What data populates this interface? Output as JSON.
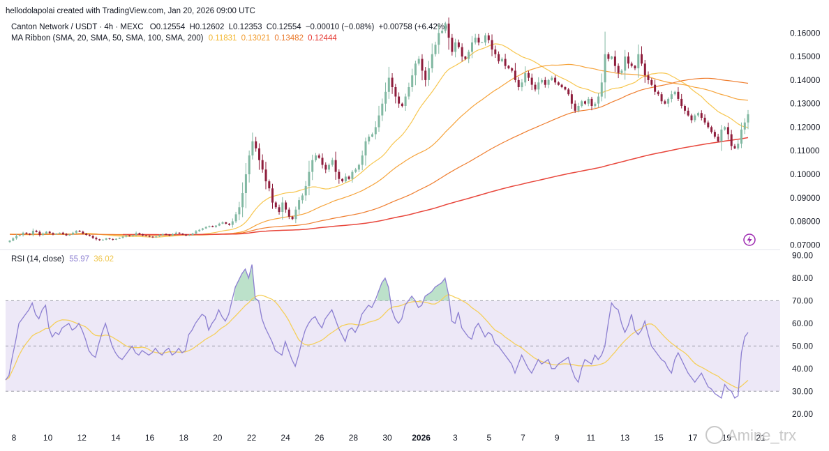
{
  "header": {
    "credit": "hellodolapolai created with TradingView.com, Jan 20, 2026 09:00 UTC",
    "symbol": "Canton Network / USDT · 4h · MEXC",
    "ohlc": {
      "o": "O0.12554",
      "h": "H0.12602",
      "l": "L0.12353",
      "c": "C0.12554",
      "change": "−0.00010 (−0.08%)",
      "change2": "+0.00758 (+6.42%)"
    },
    "ma_label": "MA Ribbon (SMA, 20, SMA, 50, SMA, 100, SMA, 200)",
    "ma_values": [
      "0.11831",
      "0.13021",
      "0.13482",
      "0.12444"
    ],
    "rsi_label": "RSI (14, close)",
    "rsi_values": [
      "55.97",
      "36.02"
    ]
  },
  "watermark": "Amine_trx",
  "colors": {
    "up": "#81b8a2",
    "down": "#8e1d3c",
    "sma20": "#f7c64f",
    "sma50": "#f6a33a",
    "sma100": "#ef7d2e",
    "sma200": "#e8463b",
    "rsi": "#8c7fd1",
    "rsi_ma": "#f5cf5b",
    "rsi_band": "#ede8f7",
    "grid_dash": "#9a9aa6"
  },
  "chart_data": [
    {
      "type": "candlestick",
      "title": "Canton Network / USDT · 4h · MEXC",
      "x_ticks": [
        "8",
        "10",
        "12",
        "14",
        "16",
        "18",
        "20",
        "22",
        "24",
        "26",
        "28",
        "30",
        "2026",
        "3",
        "5",
        "7",
        "9",
        "11",
        "13",
        "15",
        "17",
        "19",
        "21"
      ],
      "y_ticks": [
        "0.16000",
        "0.15000",
        "0.14000",
        "0.13000",
        "0.12000",
        "0.11000",
        "0.10000",
        "0.09000",
        "0.08000",
        "0.07000"
      ],
      "ylim": [
        0.0698,
        0.1675
      ],
      "close": [
        0.0718,
        0.0728,
        0.0738,
        0.0742,
        0.0752,
        0.0748,
        0.0744,
        0.076,
        0.0755,
        0.0742,
        0.0748,
        0.0756,
        0.075,
        0.0744,
        0.0748,
        0.0752,
        0.0746,
        0.074,
        0.0744,
        0.0752,
        0.076,
        0.0756,
        0.0748,
        0.0742,
        0.0738,
        0.073,
        0.0724,
        0.072,
        0.0722,
        0.0728,
        0.0725,
        0.0722,
        0.0726,
        0.073,
        0.0735,
        0.074,
        0.0738,
        0.0742,
        0.075,
        0.0745,
        0.074,
        0.0738,
        0.0735,
        0.0732,
        0.0736,
        0.0742,
        0.0746,
        0.0744,
        0.074,
        0.0746,
        0.0752,
        0.0748,
        0.0744,
        0.074,
        0.0742,
        0.0748,
        0.0758,
        0.0764,
        0.077,
        0.0776,
        0.078,
        0.0776,
        0.0782,
        0.079,
        0.0796,
        0.079,
        0.0785,
        0.08,
        0.083,
        0.086,
        0.092,
        0.1,
        0.108,
        0.114,
        0.111,
        0.106,
        0.102,
        0.097,
        0.094,
        0.088,
        0.086,
        0.084,
        0.088,
        0.085,
        0.082,
        0.081,
        0.085,
        0.089,
        0.091,
        0.095,
        0.101,
        0.106,
        0.108,
        0.107,
        0.104,
        0.102,
        0.104,
        0.106,
        0.101,
        0.098,
        0.097,
        0.099,
        0.098,
        0.101,
        0.102,
        0.104,
        0.108,
        0.114,
        0.116,
        0.117,
        0.12,
        0.125,
        0.13,
        0.135,
        0.141,
        0.137,
        0.133,
        0.13,
        0.129,
        0.133,
        0.137,
        0.142,
        0.147,
        0.149,
        0.144,
        0.14,
        0.145,
        0.151,
        0.155,
        0.16,
        0.161,
        0.164,
        0.158,
        0.152,
        0.156,
        0.154,
        0.15,
        0.149,
        0.152,
        0.156,
        0.158,
        0.156,
        0.156,
        0.159,
        0.157,
        0.153,
        0.151,
        0.148,
        0.149,
        0.146,
        0.145,
        0.144,
        0.14,
        0.137,
        0.139,
        0.143,
        0.141,
        0.138,
        0.136,
        0.139,
        0.14,
        0.138,
        0.14,
        0.141,
        0.139,
        0.138,
        0.137,
        0.136,
        0.134,
        0.13,
        0.127,
        0.129,
        0.131,
        0.13,
        0.132,
        0.129,
        0.13,
        0.133,
        0.139,
        0.151,
        0.149,
        0.15,
        0.146,
        0.143,
        0.144,
        0.15,
        0.147,
        0.146,
        0.145,
        0.151,
        0.147,
        0.142,
        0.14,
        0.138,
        0.135,
        0.134,
        0.131,
        0.13,
        0.132,
        0.134,
        0.135,
        0.132,
        0.129,
        0.127,
        0.125,
        0.123,
        0.125,
        0.126,
        0.124,
        0.122,
        0.12,
        0.118,
        0.116,
        0.114,
        0.119,
        0.12,
        0.117,
        0.112,
        0.111,
        0.113,
        0.119,
        0.122,
        0.1255
      ],
      "series": [
        {
          "name": "0.11831",
          "values": []
        },
        {
          "name": "0.13021",
          "values": []
        },
        {
          "name": "0.13482",
          "values": []
        },
        {
          "name": "0.12444",
          "values": []
        }
      ]
    },
    {
      "type": "line",
      "title": "RSI (14, close)",
      "y_ticks": [
        "90.00",
        "80.00",
        "70.00",
        "60.00",
        "50.00",
        "40.00",
        "30.00",
        "20.00"
      ],
      "ylim": [
        15,
        92
      ],
      "bands": [
        70,
        50,
        30
      ],
      "series": [
        {
          "name": "55.97",
          "values": [
            35,
            37,
            45,
            52,
            60,
            62,
            64,
            66,
            69,
            64,
            62,
            66,
            68,
            58,
            54,
            56,
            55,
            58,
            59,
            60,
            57,
            58,
            60,
            57,
            53,
            48,
            46,
            45,
            51,
            56,
            60,
            55,
            50,
            47,
            45,
            44,
            46,
            48,
            50,
            47,
            46,
            48,
            47,
            46,
            47,
            49,
            47,
            46,
            48,
            49,
            46,
            47,
            49,
            47,
            48,
            55,
            57,
            60,
            62,
            64,
            63,
            57,
            60,
            62,
            66,
            63,
            61,
            64,
            70,
            76,
            79,
            82,
            84,
            80,
            86,
            71,
            70,
            62,
            58,
            55,
            52,
            48,
            47,
            46,
            52,
            48,
            44,
            41,
            46,
            52,
            57,
            60,
            62,
            63,
            60,
            58,
            62,
            64,
            66,
            62,
            58,
            55,
            52,
            57,
            58,
            56,
            59,
            64,
            66,
            68,
            67,
            70,
            74,
            78,
            80,
            76,
            66,
            62,
            60,
            62,
            68,
            70,
            72,
            70,
            67,
            68,
            72,
            73,
            74,
            76,
            77,
            78,
            80,
            73,
            61,
            60,
            65,
            58,
            56,
            54,
            53,
            58,
            60,
            57,
            54,
            56,
            55,
            51,
            50,
            48,
            46,
            44,
            42,
            38,
            42,
            46,
            43,
            40,
            38,
            41,
            44,
            42,
            43,
            44,
            40,
            40,
            42,
            43,
            44,
            45,
            40,
            36,
            34,
            40,
            44,
            43,
            42,
            46,
            44,
            46,
            50,
            60,
            69,
            67,
            66,
            60,
            56,
            59,
            64,
            57,
            55,
            57,
            61,
            55,
            50,
            48,
            46,
            44,
            43,
            40,
            38,
            44,
            47,
            44,
            41,
            38,
            36,
            34,
            36,
            38,
            35,
            32,
            31,
            29,
            28,
            27,
            33,
            31,
            30,
            27,
            28,
            47,
            54,
            56
          ]
        },
        {
          "name": "36.02",
          "values": []
        }
      ]
    }
  ]
}
